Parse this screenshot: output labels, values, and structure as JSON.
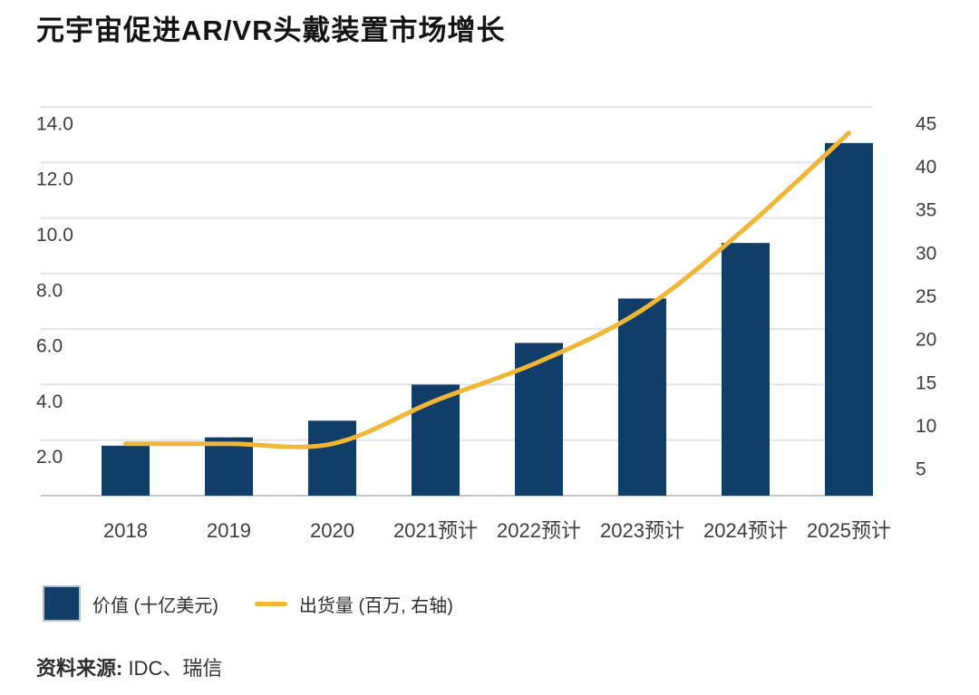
{
  "page": {
    "title": "元宇宙促进AR/VR头戴装置市场增长"
  },
  "chart_data": {
    "type": "combo",
    "title": "元宇宙促进AR/VR头戴装置市场增长",
    "categories": [
      "2018",
      "2019",
      "2020",
      "2021预计",
      "2022预计",
      "2023预计",
      "2024预计",
      "2025预计"
    ],
    "series": [
      {
        "name": "价值 (十亿美元)",
        "kind": "bar",
        "axis": "left",
        "color": "#113e68",
        "values": [
          1.8,
          2.1,
          2.7,
          4.0,
          5.5,
          7.1,
          9.1,
          12.7
        ]
      },
      {
        "name": "出货量 (百万, 右轴)",
        "kind": "line",
        "axis": "right",
        "color": "#f2b637",
        "values": [
          6,
          6,
          6,
          11,
          15.5,
          21.5,
          31,
          42
        ]
      }
    ],
    "left_axis": {
      "ticks": [
        "14.0",
        "12.0",
        "10.0",
        "8.0",
        "6.0",
        "4.0",
        "2.0"
      ],
      "min": 0,
      "max": 14
    },
    "right_axis": {
      "ticks": [
        "45",
        "40",
        "35",
        "30",
        "25",
        "20",
        "15",
        "10",
        "5"
      ],
      "min": 0,
      "max": 45
    },
    "grid": true,
    "legend_position": "bottom-left",
    "source": "资料来源: IDC、瑞信"
  },
  "legend": {
    "items": [
      {
        "label": "价值 (十亿美元)"
      },
      {
        "label": "出货量 (百万, 右轴)"
      }
    ]
  },
  "source": {
    "prefix": "资料来源:",
    "text": " IDC、瑞信"
  },
  "colors": {
    "bar": "#113e68",
    "line": "#f2b637",
    "grid": "#e3e3e9",
    "axis_line": "#c7c7cd",
    "tick_text": "#3d3d3d",
    "title_text": "#141414",
    "legend_swatch_border": "#b3bfca"
  }
}
